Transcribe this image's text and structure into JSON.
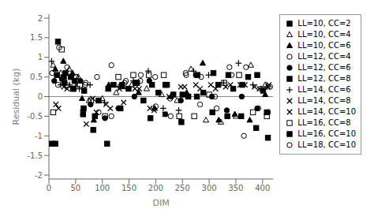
{
  "chart_data": {
    "type": "scatter",
    "title": "",
    "xlabel": "DIM",
    "ylabel": "Residual (kg)",
    "xlim": [
      0,
      420
    ],
    "ylim": [
      -2.1,
      2.1
    ],
    "xticks": [
      0,
      50,
      100,
      150,
      200,
      250,
      300,
      350,
      400
    ],
    "yticks": [
      -2,
      -1.5,
      -1,
      -0.5,
      0,
      0.5,
      1,
      1.5,
      2
    ],
    "grid": false,
    "legend": "right",
    "hline_y": 0,
    "hline_color": "#888888",
    "series": [
      {
        "name": "LL=10, CC=2",
        "marker": "square",
        "color": "black",
        "x": [
          5,
          17,
          28,
          45,
          65,
          93,
          121,
          149,
          177,
          205,
          233,
          261,
          289,
          317,
          345,
          373,
          401
        ],
        "values": [
          -1.2,
          1.4,
          0.5,
          0.2,
          -0.3,
          -0.1,
          0.3,
          0.2,
          -0.1,
          0.1,
          0.05,
          0.0,
          0.1,
          0.3,
          0.2,
          0.5,
          0.15
        ]
      },
      {
        "name": "LL=10, CC=4",
        "marker": "triangle_open",
        "color": "black",
        "x": [
          8,
          22,
          38,
          55,
          75,
          100,
          126,
          155,
          183,
          211,
          240,
          266,
          294,
          322,
          350,
          378,
          405
        ],
        "values": [
          0.8,
          0.6,
          0.7,
          0.5,
          -0.1,
          -0.05,
          0.1,
          0.3,
          0.2,
          0.05,
          -0.1,
          0.7,
          -0.6,
          -0.65,
          -0.5,
          0.8,
          0.3
        ]
      },
      {
        "name": "LL=10, CC=6",
        "marker": "triangle",
        "color": "black",
        "x": [
          12,
          27,
          44,
          62,
          84,
          112,
          138,
          168,
          198,
          228,
          258,
          288,
          318,
          348,
          376,
          405
        ],
        "values": [
          0.7,
          0.9,
          0.6,
          -0.05,
          -0.6,
          0.3,
          0.25,
          0.1,
          -0.3,
          0.0,
          0.1,
          0.85,
          -0.6,
          -0.45,
          -0.6,
          0.05
        ]
      },
      {
        "name": "LL=12, CC=4",
        "marker": "circle_open",
        "color": "black",
        "x": [
          6,
          19,
          34,
          50,
          68,
          93,
          117,
          144,
          172,
          200,
          228,
          256,
          283,
          311,
          338,
          365,
          392
        ],
        "values": [
          0.6,
          1.25,
          0.75,
          0.5,
          0.3,
          -0.4,
          -0.5,
          0.4,
          0.55,
          -0.25,
          -0.5,
          0.6,
          -0.2,
          0.0,
          0.75,
          -1.0,
          -0.3
        ]
      },
      {
        "name": "LL=12, CC=6",
        "marker": "circle",
        "color": "black",
        "x": [
          10,
          24,
          41,
          59,
          78,
          105,
          130,
          160,
          188,
          218,
          247,
          275,
          305,
          333,
          361,
          390,
          410
        ],
        "values": [
          0.4,
          0.45,
          0.5,
          0.4,
          -0.2,
          -0.55,
          -0.3,
          0.0,
          0.4,
          -0.45,
          -0.1,
          0.55,
          0.0,
          -0.35,
          0.0,
          -0.3,
          -0.4
        ]
      },
      {
        "name": "LL=12, CC=8",
        "marker": "square",
        "color": "black",
        "x": [
          15,
          31,
          48,
          66,
          86,
          111,
          137,
          165,
          193,
          221,
          250,
          278,
          308,
          336,
          362,
          390,
          408
        ],
        "values": [
          0.55,
          0.6,
          0.4,
          0.15,
          -0.5,
          0.2,
          0.3,
          0.35,
          0.3,
          0.3,
          0.05,
          0.55,
          0.6,
          0.55,
          0.3,
          0.55,
          -0.4
        ]
      },
      {
        "name": "LL=14, CC=6",
        "marker": "plus",
        "color": "black",
        "x": [
          5,
          22,
          39,
          57,
          77,
          104,
          130,
          158,
          186,
          214,
          243,
          271,
          299,
          327,
          355,
          382,
          408
        ],
        "values": [
          0.9,
          0.3,
          0.3,
          0.2,
          0.3,
          -0.15,
          0.25,
          0.4,
          0.65,
          -0.3,
          -0.35,
          0.65,
          0.55,
          0.35,
          0.85,
          0.3,
          0.25
        ]
      },
      {
        "name": "LL=14, CC=8",
        "marker": "x",
        "color": "black",
        "x": [
          13,
          28,
          45,
          63,
          82,
          107,
          132,
          161,
          189,
          217,
          247,
          275,
          303,
          331,
          358,
          385,
          410
        ],
        "values": [
          -0.2,
          0.25,
          0.2,
          -0.4,
          -0.05,
          -0.2,
          0.2,
          0.2,
          -0.3,
          -0.45,
          0.25,
          0.3,
          0.3,
          0.25,
          0.3,
          0.25,
          0.25
        ]
      },
      {
        "name": "LL=14, CC=10",
        "marker": "x",
        "color": "black",
        "x": [
          18,
          34,
          51,
          70,
          89,
          115,
          140,
          169,
          197,
          225,
          254,
          283,
          312,
          340,
          367,
          394,
          412
        ],
        "values": [
          -0.3,
          0.2,
          0.3,
          -0.7,
          -0.4,
          -0.3,
          -0.15,
          0.2,
          -0.35,
          0.0,
          0.25,
          0.2,
          0.2,
          0.3,
          0.3,
          0.2,
          0.3
        ]
      },
      {
        "name": "LL=16, CC=8",
        "marker": "square_open",
        "color": "black",
        "x": [
          8,
          24,
          41,
          58,
          79,
          105,
          130,
          158,
          187,
          215,
          244,
          272,
          300,
          328,
          356,
          382,
          408
        ],
        "values": [
          -0.4,
          1.2,
          0.5,
          0.3,
          -0.1,
          -0.5,
          0.5,
          0.55,
          0.55,
          0.55,
          -0.5,
          -0.5,
          0.05,
          0.35,
          0.55,
          -0.4,
          -0.5
        ]
      },
      {
        "name": "LL=16, CC=10",
        "marker": "square",
        "color": "black",
        "x": [
          12,
          29,
          46,
          64,
          83,
          109,
          134,
          162,
          190,
          218,
          248,
          277,
          306,
          334,
          360,
          388,
          410
        ],
        "values": [
          -1.2,
          0.35,
          0.2,
          -0.45,
          -0.85,
          -1.2,
          -0.3,
          0.35,
          -0.55,
          0.3,
          -0.65,
          0.0,
          -0.4,
          -0.5,
          -0.5,
          -0.8,
          -1.05
        ]
      },
      {
        "name": "LL=18, CC=10",
        "marker": "circle_open",
        "color": "black",
        "x": [
          17,
          33,
          51,
          69,
          90,
          117,
          142,
          171,
          199,
          227,
          257,
          285,
          314,
          342,
          369,
          396,
          414
        ],
        "values": [
          0.3,
          0.3,
          0.5,
          0.35,
          0.5,
          0.8,
          0.35,
          0.4,
          0.5,
          -0.05,
          0.55,
          0.5,
          -0.3,
          0.55,
          0.75,
          0.2,
          0.25
        ]
      }
    ]
  }
}
